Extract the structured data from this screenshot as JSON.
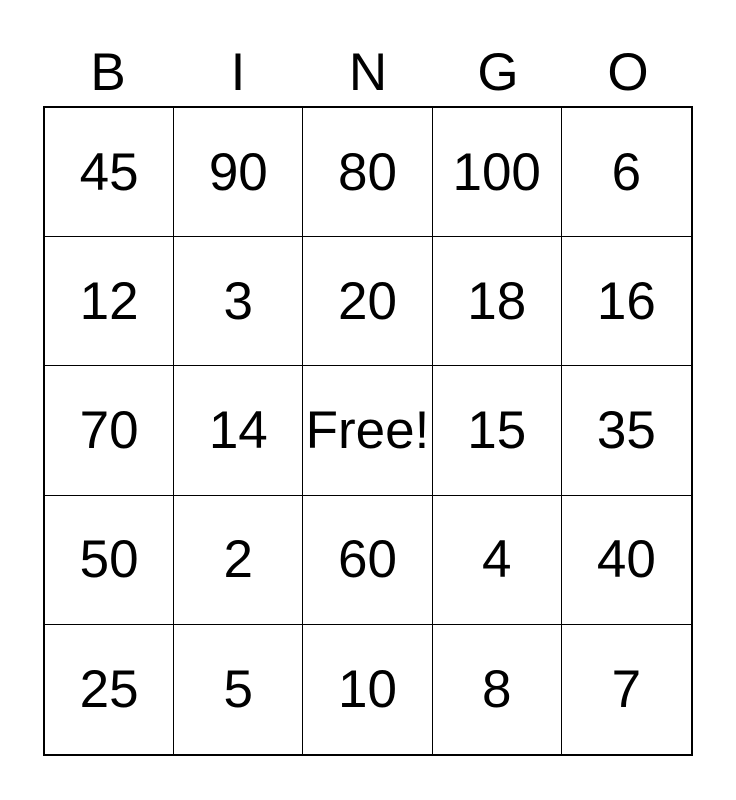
{
  "card": {
    "title": "BINGO",
    "header_letters": [
      "B",
      "I",
      "N",
      "G",
      "O"
    ],
    "free_cell_label": "Free!",
    "free_cell_position": {
      "row": 2,
      "col": 2
    },
    "rows": [
      [
        "45",
        "90",
        "80",
        "100",
        "6"
      ],
      [
        "12",
        "3",
        "20",
        "18",
        "16"
      ],
      [
        "70",
        "14",
        "Free!",
        "15",
        "35"
      ],
      [
        "50",
        "2",
        "60",
        "4",
        "40"
      ],
      [
        "25",
        "5",
        "10",
        "8",
        "7"
      ]
    ]
  },
  "colors": {
    "background": "#ffffff",
    "grid_line": "#000000",
    "text": "#000000"
  }
}
